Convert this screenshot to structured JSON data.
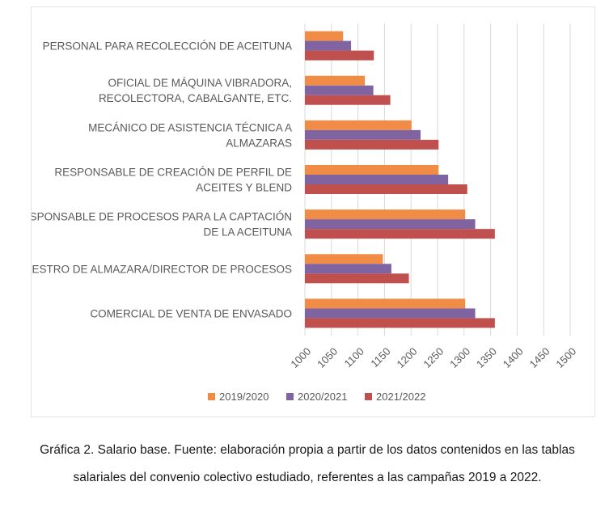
{
  "chart_data": {
    "type": "bar",
    "orientation": "horizontal",
    "categories": [
      [
        "PERSONAL PARA RECOLECCIÓN DE ACEITUNA"
      ],
      [
        "OFICIAL DE MÁQUINA VIBRADORA,",
        "RECOLECTORA, CABALGANTE, ETC."
      ],
      [
        "MECÁNICO DE ASISTENCIA TÉCNICA A",
        "ALMAZARAS"
      ],
      [
        "RESPONSABLE DE CREACIÓN DE PERFIL DE",
        "ACEITES Y BLEND"
      ],
      [
        "RESPONSABLE DE PROCESOS PARA LA CAPTACIÓN",
        "DE LA ACEITUNA"
      ],
      [
        "MAESTRO DE ALMAZARA/DIRECTOR DE PROCESOS"
      ],
      [
        "COMERCIAL DE VENTA DE ENVASADO"
      ]
    ],
    "series": [
      {
        "name": "2019/2020",
        "color": "#f18c46",
        "values": [
          1072,
          1113,
          1201,
          1252,
          1302,
          1147,
          1302
        ]
      },
      {
        "name": "2020/2021",
        "color": "#8064a2",
        "values": [
          1087,
          1129,
          1218,
          1270,
          1321,
          1163,
          1321
        ]
      },
      {
        "name": "2021/2022",
        "color": "#c0504d",
        "values": [
          1130,
          1161,
          1252,
          1306,
          1358,
          1196,
          1358
        ]
      }
    ],
    "xlim": [
      1000,
      1500
    ],
    "xticks": [
      1000,
      1050,
      1100,
      1150,
      1200,
      1250,
      1300,
      1350,
      1400,
      1450,
      1500
    ],
    "grid": "vertical",
    "legend_position": "bottom"
  },
  "caption": "Gráfica 2. Salario base. Fuente: elaboración propia a partir de los datos contenidos en las tablas salariales del convenio colectivo estudiado, referentes a las campañas 2019 a 2022."
}
